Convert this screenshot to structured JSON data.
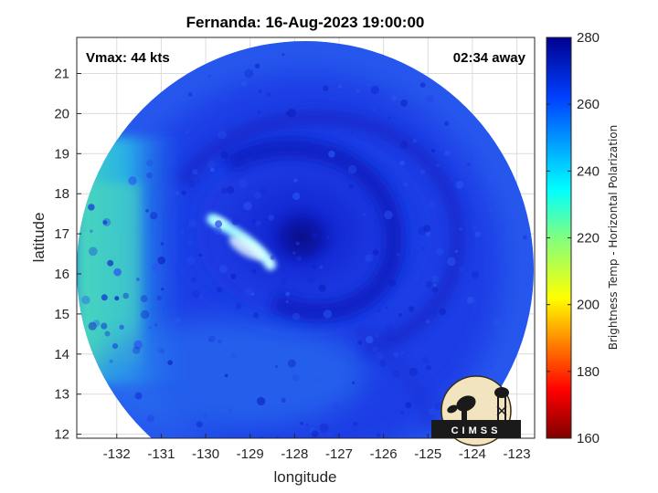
{
  "chart_data": {
    "type": "heatmap",
    "title": "Fernanda: 16-Aug-2023 19:00:00",
    "xlabel": "longitude",
    "ylabel": "latitude",
    "xlim": [
      -132.9,
      -122.6
    ],
    "ylim": [
      11.9,
      21.9
    ],
    "x_ticks": [
      -132,
      -131,
      -130,
      -129,
      -128,
      -127,
      -126,
      -125,
      -124,
      -123
    ],
    "y_ticks": [
      12,
      13,
      14,
      15,
      16,
      17,
      18,
      19,
      20,
      21
    ],
    "grid": true,
    "annotations": {
      "left": "Vmax: 44 kts",
      "right": "02:34 away"
    },
    "colorbar": {
      "label": "Brightness Temp - Horizontal Polarization",
      "min": 160,
      "max": 280,
      "ticks": [
        160,
        180,
        200,
        220,
        240,
        260,
        280
      ],
      "colormap": "jet"
    },
    "swath": {
      "center_lon": -127.75,
      "center_lat": 16.5,
      "radius_deg": 5.7,
      "background_value": 262,
      "features": [
        {
          "kind": "eye",
          "lon": -127.8,
          "lat": 16.95,
          "value": 272
        },
        {
          "kind": "warm-rainband",
          "lon": -129.3,
          "lat": 16.6,
          "value": 236
        },
        {
          "kind": "cool-west-edge",
          "lon": -132.4,
          "lat": 16.5,
          "value": 232
        }
      ]
    }
  },
  "logo": {
    "text": "CIMSS"
  },
  "colors": {
    "deep_blue": "#0b1fcf",
    "axis": "#262626",
    "grid": "#dcdcdc"
  }
}
